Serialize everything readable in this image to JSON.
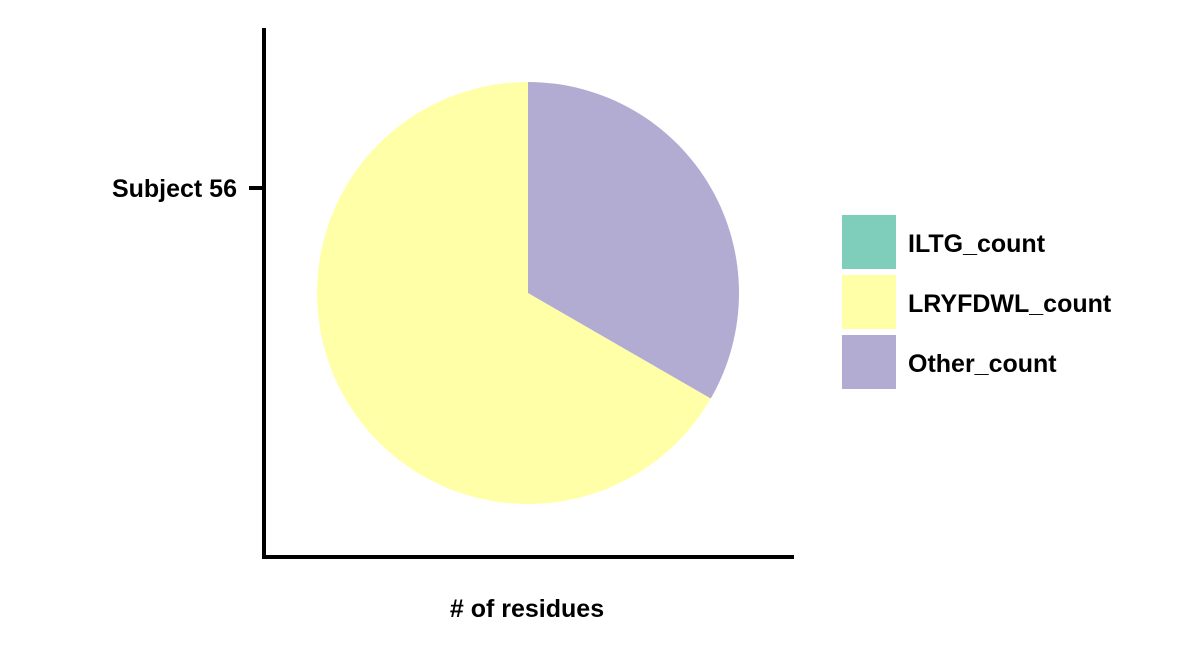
{
  "chart_data": {
    "type": "pie",
    "title": "",
    "xlabel": "# of residues",
    "ylabel": "",
    "y_tick_labels": [
      "Subject 56"
    ],
    "slices": [
      {
        "label": "ILTG_count",
        "value": 0,
        "color": "#7fcdbb"
      },
      {
        "label": "LRYFDWL_count",
        "value": 2,
        "color": "#ffffa8"
      },
      {
        "label": "Other_count",
        "value": 1,
        "color": "#b2abd2"
      }
    ],
    "legend": {
      "position": "right",
      "items": [
        "ILTG_count",
        "LRYFDWL_count",
        "Other_count"
      ]
    },
    "grid": false
  }
}
